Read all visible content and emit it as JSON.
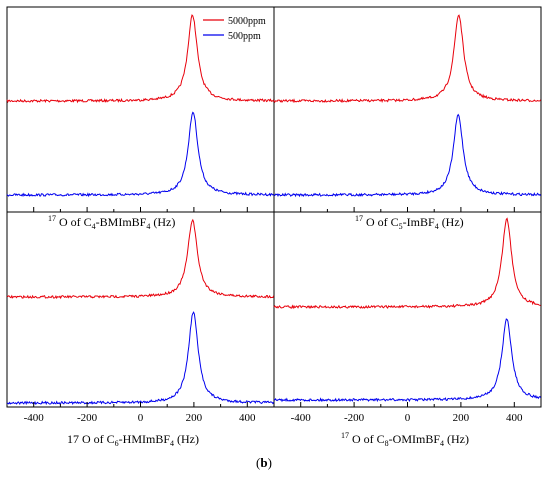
{
  "figure": {
    "sub_label_open": "(",
    "sub_label_letter": "b",
    "sub_label_close": ")"
  },
  "legend": {
    "entries": [
      {
        "name": "5000ppm",
        "color": "#e8000b"
      },
      {
        "name": "500ppm",
        "color": "#0000ee"
      }
    ]
  },
  "panels": {
    "top_left": {
      "label_pre": "17",
      "label_main": " O of C",
      "label_sub": "4",
      "label_mid": "-BMImBF",
      "label_sub2": "4",
      "label_post": " (Hz)"
    },
    "top_right": {
      "label_pre": "17",
      "label_main": " O of C",
      "label_sub": "5",
      "label_mid": "-ImBF",
      "label_sub2": "4",
      "label_post": " (Hz)"
    },
    "bottom_left": {
      "label_pre": "",
      "label_main": "17 O of C",
      "label_sub": "6",
      "label_mid": "-HMImBF",
      "label_sub2": "4",
      "label_post": " (Hz)"
    },
    "bottom_right": {
      "label_pre": "17",
      "label_main": " O of C",
      "label_sub": "8",
      "label_mid": "-OMImBF",
      "label_sub2": "4",
      "label_post": " (Hz)"
    }
  },
  "chart_data": [
    {
      "type": "line",
      "panel": "top_left",
      "xlabel": "17 O of C4-BMImBF4 (Hz)",
      "xlim": [
        -500,
        500
      ],
      "xticks": [],
      "y_axis_labels": "none",
      "series": [
        {
          "name": "5000ppm",
          "color": "#e8000b",
          "peak_center": 195,
          "peak_width": 22,
          "baseline": 0.58,
          "peak_height": 0.9
        },
        {
          "name": "500ppm",
          "color": "#0000ee",
          "peak_center": 197,
          "peak_width": 22,
          "baseline": 0.1,
          "peak_height": 0.9
        }
      ]
    },
    {
      "type": "line",
      "panel": "top_right",
      "xlabel": "17 O of C5-ImBF4 (Hz)",
      "xlim": [
        -500,
        500
      ],
      "xticks": [],
      "y_axis_labels": "none",
      "series": [
        {
          "name": "5000ppm",
          "color": "#e8000b",
          "peak_center": 192,
          "peak_width": 22,
          "baseline": 0.58,
          "peak_height": 0.9
        },
        {
          "name": "500ppm",
          "color": "#0000ee",
          "peak_center": 190,
          "peak_width": 22,
          "baseline": 0.1,
          "peak_height": 0.9
        }
      ]
    },
    {
      "type": "line",
      "panel": "bottom_left",
      "xlabel": "17 O of C6-HMImBF4 (Hz)",
      "xlim": [
        -500,
        500
      ],
      "xticks": [
        -400,
        -200,
        0,
        200,
        400
      ],
      "y_axis_labels": "none",
      "series": [
        {
          "name": "5000ppm",
          "color": "#e8000b",
          "peak_center": 195,
          "peak_width": 22,
          "baseline": 0.58,
          "peak_height": 0.9
        },
        {
          "name": "500ppm",
          "color": "#0000ee",
          "peak_center": 198,
          "peak_width": 22,
          "baseline": 0.1,
          "peak_height": 0.9
        }
      ]
    },
    {
      "type": "line",
      "panel": "bottom_right",
      "xlabel": "17 O of C8-OMImBF4 (Hz)",
      "xlim": [
        -500,
        500
      ],
      "xticks": [
        -400,
        -200,
        0,
        200,
        400
      ],
      "y_axis_labels": "none",
      "series": [
        {
          "name": "5000ppm",
          "color": "#e8000b",
          "peak_center": 372,
          "peak_width": 22,
          "baseline": 0.55,
          "peak_height": 0.9
        },
        {
          "name": "500ppm",
          "color": "#0000ee",
          "peak_center": 372,
          "peak_width": 22,
          "baseline": 0.1,
          "peak_height": 0.9
        }
      ]
    }
  ]
}
